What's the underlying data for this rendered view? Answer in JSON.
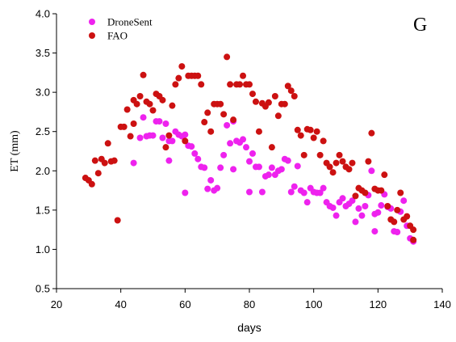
{
  "chart_data": {
    "type": "scatter",
    "panel_label": "G",
    "xlabel": "days",
    "ylabel": "ET (mm)",
    "xlim": [
      20,
      140
    ],
    "ylim": [
      0.5,
      4.0
    ],
    "x_ticks": [
      "20",
      "40",
      "60",
      "80",
      "100",
      "120",
      "140"
    ],
    "y_ticks": [
      "0.5",
      "1.0",
      "1.5",
      "2.0",
      "2.5",
      "3.0",
      "3.5",
      "4.0"
    ],
    "legend_position": "top-left",
    "grid": false,
    "series": [
      {
        "name": "DroneSent",
        "color": "#ee22ee",
        "points": [
          [
            44,
            2.1
          ],
          [
            46,
            2.42
          ],
          [
            47,
            2.68
          ],
          [
            48,
            2.44
          ],
          [
            49,
            2.45
          ],
          [
            50,
            2.45
          ],
          [
            51,
            2.63
          ],
          [
            52,
            2.63
          ],
          [
            53,
            2.42
          ],
          [
            54,
            2.6
          ],
          [
            55,
            2.38
          ],
          [
            55,
            2.13
          ],
          [
            56,
            2.38
          ],
          [
            57,
            2.5
          ],
          [
            58,
            2.46
          ],
          [
            59,
            2.44
          ],
          [
            60,
            2.46
          ],
          [
            60,
            1.72
          ],
          [
            61,
            2.32
          ],
          [
            62,
            2.31
          ],
          [
            63,
            2.22
          ],
          [
            64,
            2.15
          ],
          [
            65,
            2.05
          ],
          [
            66,
            2.04
          ],
          [
            67,
            1.77
          ],
          [
            68,
            1.88
          ],
          [
            69,
            1.75
          ],
          [
            70,
            1.78
          ],
          [
            71,
            2.04
          ],
          [
            72,
            2.2
          ],
          [
            73,
            2.58
          ],
          [
            74,
            2.35
          ],
          [
            75,
            2.02
          ],
          [
            75,
            2.63
          ],
          [
            76,
            2.38
          ],
          [
            77,
            2.36
          ],
          [
            78,
            2.4
          ],
          [
            79,
            2.3
          ],
          [
            80,
            2.12
          ],
          [
            80,
            1.73
          ],
          [
            81,
            2.22
          ],
          [
            82,
            2.05
          ],
          [
            83,
            2.05
          ],
          [
            84,
            1.73
          ],
          [
            85,
            1.93
          ],
          [
            86,
            1.95
          ],
          [
            87,
            2.04
          ],
          [
            88,
            1.95
          ],
          [
            89,
            2.0
          ],
          [
            90,
            2.02
          ],
          [
            91,
            2.15
          ],
          [
            92,
            2.13
          ],
          [
            93,
            1.73
          ],
          [
            94,
            1.8
          ],
          [
            95,
            2.06
          ],
          [
            96,
            1.75
          ],
          [
            97,
            1.72
          ],
          [
            98,
            1.6
          ],
          [
            99,
            1.78
          ],
          [
            100,
            1.73
          ],
          [
            101,
            1.72
          ],
          [
            102,
            1.72
          ],
          [
            103,
            1.78
          ],
          [
            104,
            1.6
          ],
          [
            105,
            1.55
          ],
          [
            106,
            1.53
          ],
          [
            107,
            1.43
          ],
          [
            108,
            1.6
          ],
          [
            109,
            1.65
          ],
          [
            110,
            1.55
          ],
          [
            111,
            1.58
          ],
          [
            112,
            1.62
          ],
          [
            113,
            1.35
          ],
          [
            114,
            1.52
          ],
          [
            115,
            1.43
          ],
          [
            116,
            1.55
          ],
          [
            117,
            1.69
          ],
          [
            118,
            2.0
          ],
          [
            119,
            1.45
          ],
          [
            119,
            1.23
          ],
          [
            120,
            1.47
          ],
          [
            121,
            1.56
          ],
          [
            122,
            1.7
          ],
          [
            123,
            1.54
          ],
          [
            124,
            1.52
          ],
          [
            125,
            1.23
          ],
          [
            126,
            1.22
          ],
          [
            127,
            1.48
          ],
          [
            128,
            1.62
          ],
          [
            129,
            1.3
          ],
          [
            130,
            1.14
          ],
          [
            131,
            1.1
          ]
        ]
      },
      {
        "name": "FAO",
        "color": "#cc1111",
        "points": [
          [
            29,
            1.91
          ],
          [
            30,
            1.88
          ],
          [
            31,
            1.83
          ],
          [
            32,
            2.13
          ],
          [
            33,
            1.97
          ],
          [
            34,
            2.15
          ],
          [
            35,
            2.1
          ],
          [
            36,
            2.35
          ],
          [
            37,
            2.12
          ],
          [
            38,
            2.13
          ],
          [
            39,
            1.37
          ],
          [
            40,
            2.56
          ],
          [
            41,
            2.56
          ],
          [
            42,
            2.78
          ],
          [
            43,
            2.44
          ],
          [
            44,
            2.6
          ],
          [
            44,
            2.9
          ],
          [
            45,
            2.85
          ],
          [
            46,
            2.95
          ],
          [
            47,
            3.22
          ],
          [
            48,
            2.88
          ],
          [
            49,
            2.85
          ],
          [
            50,
            2.77
          ],
          [
            51,
            2.98
          ],
          [
            52,
            2.95
          ],
          [
            53,
            2.9
          ],
          [
            54,
            2.3
          ],
          [
            55,
            2.45
          ],
          [
            56,
            2.83
          ],
          [
            57,
            3.1
          ],
          [
            58,
            3.18
          ],
          [
            59,
            3.33
          ],
          [
            60,
            2.38
          ],
          [
            61,
            3.21
          ],
          [
            62,
            3.21
          ],
          [
            63,
            3.21
          ],
          [
            64,
            3.21
          ],
          [
            65,
            3.1
          ],
          [
            66,
            2.62
          ],
          [
            67,
            2.74
          ],
          [
            68,
            2.5
          ],
          [
            69,
            2.85
          ],
          [
            70,
            2.85
          ],
          [
            71,
            2.85
          ],
          [
            72,
            2.72
          ],
          [
            73,
            3.45
          ],
          [
            74,
            3.1
          ],
          [
            75,
            2.65
          ],
          [
            76,
            3.1
          ],
          [
            77,
            3.1
          ],
          [
            78,
            3.21
          ],
          [
            79,
            3.1
          ],
          [
            80,
            3.1
          ],
          [
            81,
            2.98
          ],
          [
            82,
            2.88
          ],
          [
            83,
            2.5
          ],
          [
            84,
            2.86
          ],
          [
            85,
            2.82
          ],
          [
            86,
            2.87
          ],
          [
            87,
            2.3
          ],
          [
            88,
            2.95
          ],
          [
            89,
            2.7
          ],
          [
            90,
            2.85
          ],
          [
            91,
            2.85
          ],
          [
            92,
            3.08
          ],
          [
            93,
            3.02
          ],
          [
            94,
            2.95
          ],
          [
            95,
            2.52
          ],
          [
            96,
            2.45
          ],
          [
            97,
            2.2
          ],
          [
            98,
            2.53
          ],
          [
            99,
            2.52
          ],
          [
            100,
            2.42
          ],
          [
            101,
            2.5
          ],
          [
            102,
            2.2
          ],
          [
            103,
            2.38
          ],
          [
            104,
            2.1
          ],
          [
            105,
            2.05
          ],
          [
            106,
            1.98
          ],
          [
            107,
            2.1
          ],
          [
            108,
            2.2
          ],
          [
            109,
            2.12
          ],
          [
            110,
            2.05
          ],
          [
            111,
            2.02
          ],
          [
            112,
            2.1
          ],
          [
            113,
            1.68
          ],
          [
            114,
            1.78
          ],
          [
            115,
            1.75
          ],
          [
            116,
            1.72
          ],
          [
            117,
            2.12
          ],
          [
            118,
            2.48
          ],
          [
            119,
            1.77
          ],
          [
            120,
            1.75
          ],
          [
            121,
            1.75
          ],
          [
            122,
            1.95
          ],
          [
            123,
            1.55
          ],
          [
            124,
            1.38
          ],
          [
            125,
            1.35
          ],
          [
            126,
            1.5
          ],
          [
            127,
            1.72
          ],
          [
            128,
            1.38
          ],
          [
            129,
            1.42
          ],
          [
            130,
            1.3
          ],
          [
            131,
            1.25
          ],
          [
            131,
            1.12
          ]
        ]
      }
    ]
  }
}
